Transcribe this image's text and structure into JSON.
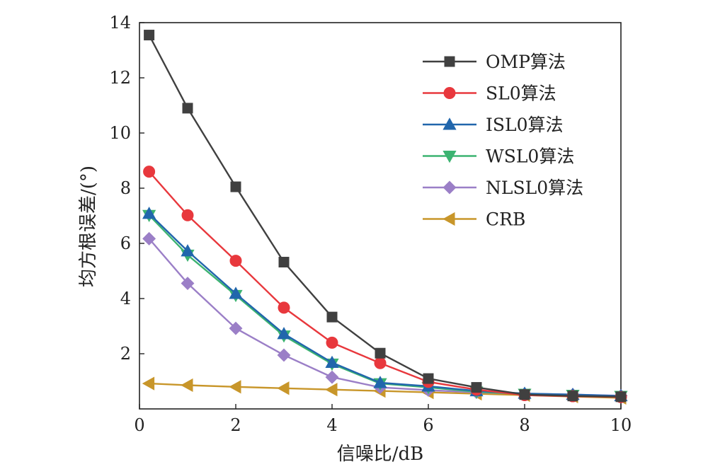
{
  "chart_data": {
    "type": "line",
    "xlabel": "信噪比/dB",
    "ylabel": "均方根误差/(°)",
    "xlim": [
      0,
      10
    ],
    "ylim": [
      0,
      14
    ],
    "xticks": [
      "0",
      "2",
      "4",
      "6",
      "8",
      "10"
    ],
    "yticks": [
      "2",
      "4",
      "6",
      "8",
      "10",
      "12",
      "14"
    ],
    "grid": false,
    "legend_position": "top-right",
    "x": [
      0.2,
      1,
      2,
      3,
      4,
      5,
      6,
      7,
      8,
      9,
      10
    ],
    "series": [
      {
        "name": "OMP算法",
        "color": "#404040",
        "marker": "square",
        "values": [
          13.55,
          10.9,
          8.05,
          5.32,
          3.33,
          2.02,
          1.1,
          0.78,
          0.52,
          0.47,
          0.44
        ]
      },
      {
        "name": "SL0算法",
        "color": "#e8383d",
        "marker": "circle",
        "values": [
          8.6,
          7.02,
          5.37,
          3.67,
          2.4,
          1.66,
          0.98,
          0.7,
          0.5,
          0.46,
          0.43
        ]
      },
      {
        "name": "ISL0算法",
        "color": "#2166ac",
        "marker": "triangle-up",
        "values": [
          7.08,
          5.72,
          4.18,
          2.72,
          1.68,
          0.95,
          0.82,
          0.65,
          0.56,
          0.52,
          0.47
        ]
      },
      {
        "name": "WSL0算法",
        "color": "#3cb371",
        "marker": "triangle-down",
        "values": [
          7.02,
          5.58,
          4.12,
          2.65,
          1.63,
          0.92,
          0.78,
          0.62,
          0.54,
          0.5,
          0.46
        ]
      },
      {
        "name": "NLSL0算法",
        "color": "#9b7fc7",
        "marker": "diamond",
        "values": [
          6.17,
          4.55,
          2.92,
          1.95,
          1.15,
          0.78,
          0.68,
          0.6,
          0.55,
          0.52,
          0.48
        ]
      },
      {
        "name": "CRB",
        "color": "#c8962a",
        "marker": "triangle-left",
        "values": [
          0.92,
          0.86,
          0.8,
          0.75,
          0.7,
          0.65,
          0.6,
          0.55,
          0.5,
          0.45,
          0.4
        ]
      }
    ]
  }
}
